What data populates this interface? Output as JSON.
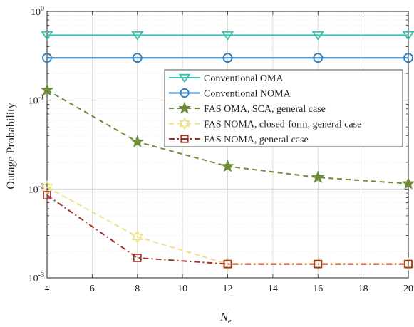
{
  "chart_data": {
    "type": "line",
    "xlabel": "N",
    "xlabel_sub": "e",
    "ylabel": "Outage Probability",
    "xlim": [
      4,
      20
    ],
    "ylim": [
      0.001,
      1
    ],
    "y_scale": "log",
    "grid": true,
    "x_ticks": [
      4,
      6,
      8,
      10,
      12,
      14,
      16,
      18,
      20
    ],
    "y_ticks": [
      {
        "value": 1,
        "base": "10",
        "exp": "0"
      },
      {
        "value": 0.1,
        "base": "10",
        "exp": "-1"
      },
      {
        "value": 0.01,
        "base": "10",
        "exp": "-2"
      },
      {
        "value": 0.001,
        "base": "10",
        "exp": "-3"
      }
    ],
    "legend_position": "top-right",
    "series": [
      {
        "name": "Conventional OMA",
        "color": "#3cbfb0",
        "marker": "triangle-down",
        "dash": "solid",
        "x": [
          4,
          8,
          12,
          16,
          20
        ],
        "y": [
          0.54,
          0.54,
          0.54,
          0.54,
          0.54
        ]
      },
      {
        "name": "Conventional NOMA",
        "color": "#2a7dbf",
        "marker": "circle",
        "dash": "solid",
        "x": [
          4,
          8,
          12,
          16,
          20
        ],
        "y": [
          0.3,
          0.3,
          0.3,
          0.3,
          0.3
        ]
      },
      {
        "name": "FAS OMA, SCA, general case",
        "color": "#6e8c3a",
        "marker": "star",
        "dash": "dashed",
        "x": [
          4,
          8,
          12,
          16,
          20
        ],
        "y": [
          0.13,
          0.034,
          0.018,
          0.0135,
          0.0115
        ]
      },
      {
        "name": "FAS NOMA, closed-form, general case",
        "color": "#f0e08a",
        "marker": "hexagram",
        "dash": "dashed",
        "x": [
          4,
          8,
          12,
          16,
          20
        ],
        "y": [
          0.0105,
          0.0029,
          0.00143,
          0.00143,
          0.00143
        ]
      },
      {
        "name": "FAS NOMA, general case",
        "color": "#a0352d",
        "marker": "square",
        "dash": "dashdot",
        "x": [
          4,
          8,
          12,
          16,
          20
        ],
        "y": [
          0.0085,
          0.00168,
          0.00143,
          0.00143,
          0.00143
        ]
      }
    ]
  }
}
